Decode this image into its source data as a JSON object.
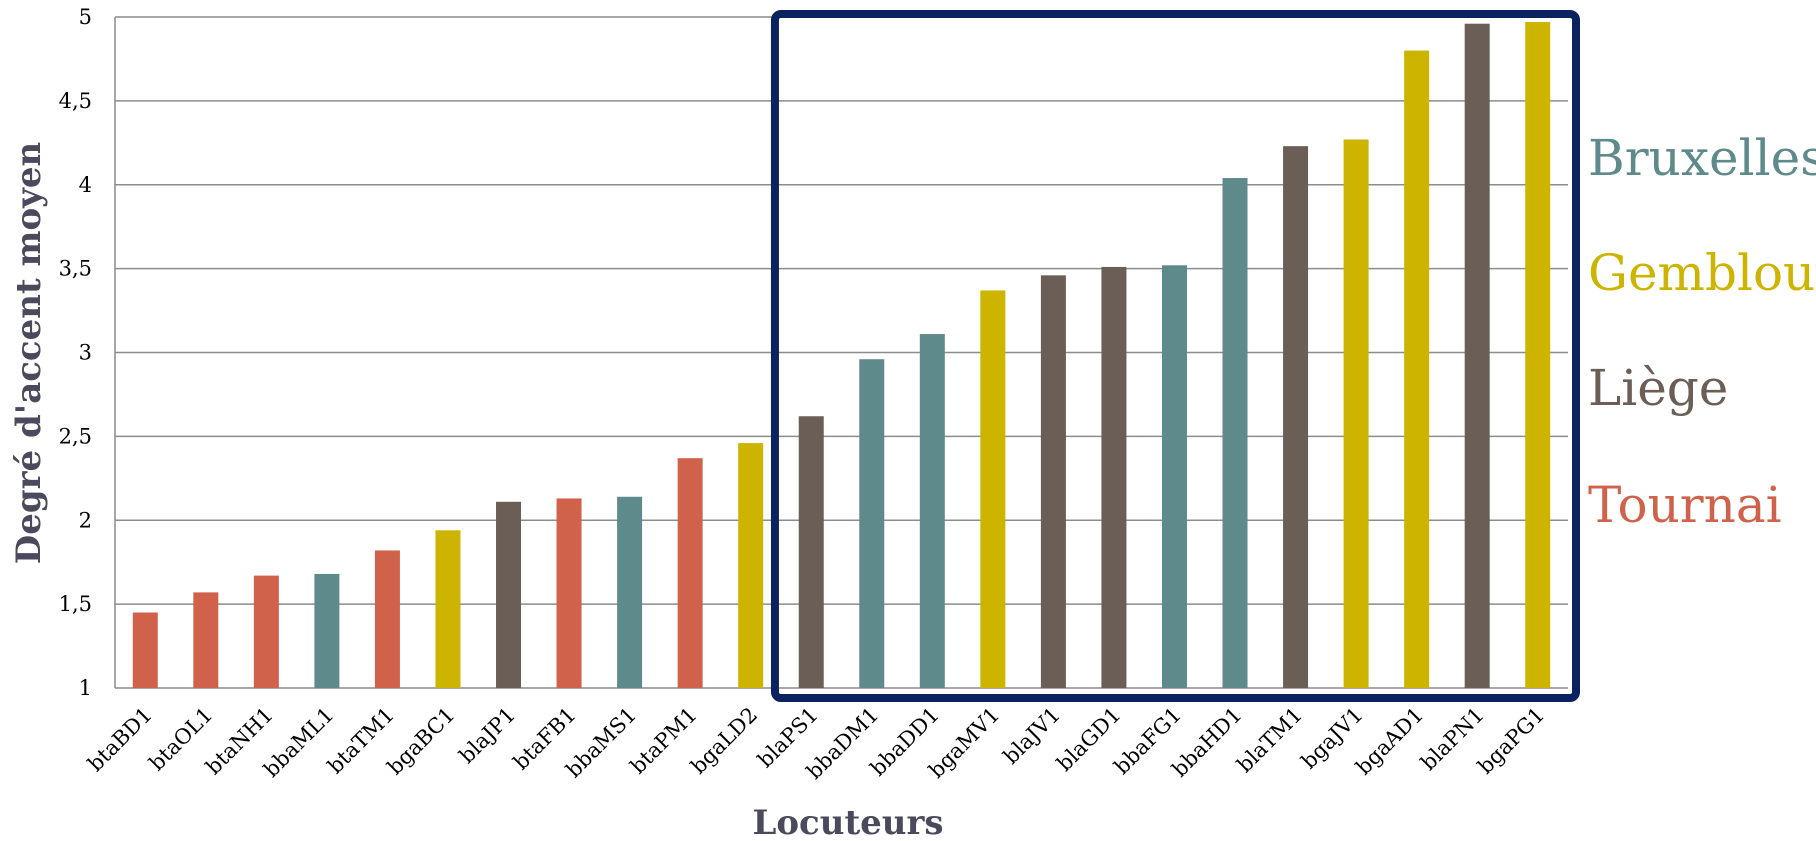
{
  "chart_data": {
    "type": "bar",
    "xlabel": "Locuteurs",
    "ylabel": "Degré d'accent moyen",
    "ylim": [
      1,
      5
    ],
    "yticks": [
      "1",
      "1,5",
      "2",
      "2,5",
      "3",
      "3,5",
      "4",
      "4,5",
      "5"
    ],
    "ytick_values": [
      1,
      1.5,
      2,
      2.5,
      3,
      3.5,
      4,
      4.5,
      5
    ],
    "grid": true,
    "categories": [
      "btaBD1",
      "btaOL1",
      "btaNH1",
      "bbaML1",
      "btaTM1",
      "bgaBC1",
      "blaJP1",
      "btaFB1",
      "bbaMS1",
      "btaPM1",
      "bgaLD2",
      "blaPS1",
      "bbaDM1",
      "bbaDD1",
      "bgaMV1",
      "blaJV1",
      "blaGD1",
      "bbaFG1",
      "bbaHD1",
      "blaTM1",
      "bgaJV1",
      "bgaAD1",
      "blaPN1",
      "bgaPG1"
    ],
    "values": [
      1.45,
      1.57,
      1.67,
      1.68,
      1.82,
      1.94,
      2.11,
      2.13,
      2.14,
      2.37,
      2.46,
      2.62,
      2.96,
      3.11,
      3.37,
      3.46,
      3.51,
      3.52,
      4.04,
      4.23,
      4.27,
      4.8,
      4.96,
      4.97
    ],
    "groups": [
      "Tournai",
      "Tournai",
      "Tournai",
      "Bruxelles",
      "Tournai",
      "Gembloux",
      "Liège",
      "Tournai",
      "Bruxelles",
      "Tournai",
      "Gembloux",
      "Liège",
      "Bruxelles",
      "Bruxelles",
      "Gembloux",
      "Liège",
      "Liège",
      "Bruxelles",
      "Bruxelles",
      "Liège",
      "Gembloux",
      "Gembloux",
      "Liège",
      "Gembloux"
    ],
    "legend": [
      {
        "name": "Bruxelles",
        "color": "#5f8a8b"
      },
      {
        "name": "Gembloux",
        "color": "#ccb400"
      },
      {
        "name": "Liège",
        "color": "#6a5e56"
      },
      {
        "name": "Tournai",
        "color": "#d0624b"
      }
    ],
    "legend_position": "right",
    "highlight": {
      "from_category": "blaPS1",
      "to_category": "bgaPG1",
      "color": "#0b2260"
    }
  }
}
